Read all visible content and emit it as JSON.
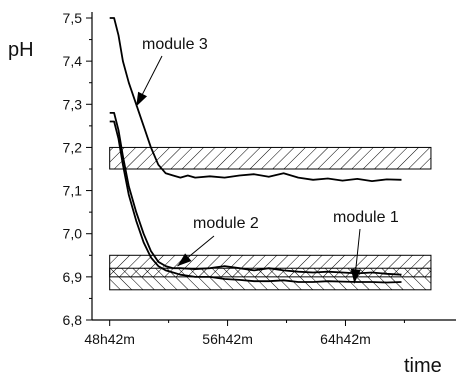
{
  "chart_data": {
    "type": "line",
    "xlabel": "time",
    "ylabel": "pH",
    "xlim": [
      47.5,
      72.2
    ],
    "ylim": [
      6.8,
      7.5
    ],
    "x_ticks": [
      48.7,
      56.7,
      64.7
    ],
    "x_tick_labels": [
      "48h42m",
      "56h42m",
      "64h42m"
    ],
    "y_ticks": [
      6.8,
      6.9,
      7.0,
      7.1,
      7.2,
      7.3,
      7.4,
      7.5
    ],
    "y_tick_labels": [
      "6,8",
      "6,9",
      "7,0",
      "7,1",
      "7,2",
      "7,3",
      "7,4",
      "7,5"
    ],
    "series": [
      {
        "name": "module 3",
        "x": [
          48.7,
          49.0,
          49.3,
          49.6,
          50.0,
          50.5,
          51.0,
          51.5,
          52.0,
          52.5,
          53.0,
          53.5,
          54.0,
          54.5,
          55.5,
          56.5,
          57.5,
          58.5,
          59.5,
          60.5,
          61.5,
          62.5,
          63.5,
          64.5,
          65.5,
          66.5,
          67.5,
          68.5
        ],
        "y": [
          7.5,
          7.5,
          7.46,
          7.4,
          7.35,
          7.3,
          7.25,
          7.2,
          7.16,
          7.14,
          7.135,
          7.13,
          7.135,
          7.13,
          7.133,
          7.13,
          7.135,
          7.138,
          7.132,
          7.14,
          7.13,
          7.125,
          7.128,
          7.123,
          7.127,
          7.122,
          7.126,
          7.125
        ]
      },
      {
        "name": "module 2",
        "x": [
          48.7,
          49.0,
          49.3,
          49.6,
          50.0,
          50.5,
          51.0,
          51.5,
          52.0,
          52.5,
          53.0,
          53.5,
          54.5,
          55.5,
          56.5,
          57.5,
          58.5,
          59.5,
          60.5,
          61.5,
          62.5,
          63.5,
          64.5,
          65.5,
          66.5,
          67.5,
          68.5
        ],
        "y": [
          7.28,
          7.28,
          7.24,
          7.18,
          7.11,
          7.05,
          7.0,
          6.96,
          6.935,
          6.925,
          6.92,
          6.92,
          6.918,
          6.92,
          6.925,
          6.92,
          6.915,
          6.92,
          6.915,
          6.912,
          6.91,
          6.912,
          6.91,
          6.908,
          6.91,
          6.907,
          6.905
        ]
      },
      {
        "name": "module 1",
        "x": [
          48.7,
          49.0,
          49.3,
          49.6,
          50.0,
          50.5,
          51.0,
          51.5,
          52.0,
          52.5,
          53.0,
          53.5,
          54.5,
          55.5,
          56.5,
          57.5,
          58.5,
          59.5,
          60.5,
          61.5,
          62.5,
          63.5,
          64.5,
          65.5,
          66.5,
          67.5,
          68.5
        ],
        "y": [
          7.26,
          7.26,
          7.22,
          7.16,
          7.09,
          7.03,
          6.98,
          6.945,
          6.925,
          6.915,
          6.91,
          6.905,
          6.9,
          6.9,
          6.895,
          6.893,
          6.89,
          6.89,
          6.892,
          6.888,
          6.888,
          6.89,
          6.889,
          6.888,
          6.888,
          6.887,
          6.888
        ]
      }
    ],
    "bands": [
      {
        "y_range": [
          7.15,
          7.2
        ],
        "pattern": "forward-hatch"
      },
      {
        "y_range": [
          6.9,
          6.95
        ],
        "pattern": "forward-hatch"
      },
      {
        "y_range": [
          6.87,
          6.92
        ],
        "pattern": "back-hatch"
      }
    ],
    "band_x_range": [
      48.7,
      70.5
    ],
    "annotations": [
      {
        "text": "module 3",
        "series": "module 3"
      },
      {
        "text": "module 2",
        "series": "module 2"
      },
      {
        "text": "module 1",
        "series": "module 1"
      }
    ]
  }
}
